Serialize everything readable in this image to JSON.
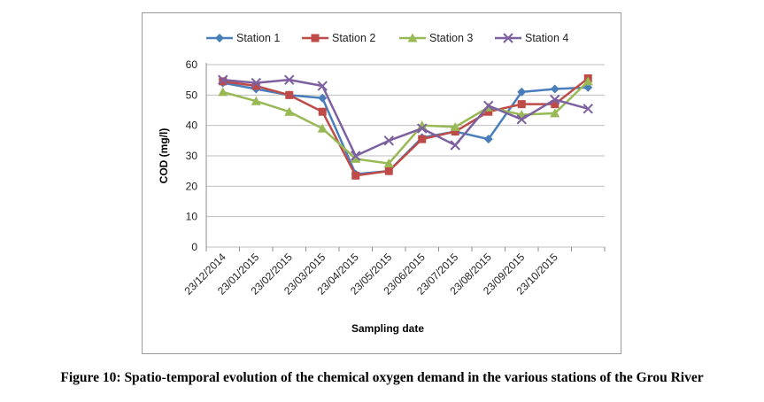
{
  "caption": "Figure 10: Spatio-temporal evolution of the chemical oxygen demand in the various stations of the Grou River",
  "chart_data": {
    "type": "line",
    "xlabel": "Sampling date",
    "ylabel": "COD (mg/l)",
    "ylim": [
      0,
      60
    ],
    "yticks": [
      0,
      10,
      20,
      30,
      40,
      50,
      60
    ],
    "categories": [
      "23/12/2014",
      "23/01/2015",
      "23/02/2015",
      "23/03/2015",
      "23/04/2015",
      "23/05/2015",
      "23/06/2015",
      "23/07/2015",
      "23/08/2015",
      "23/09/2015",
      "23/10/2015",
      ""
    ],
    "grid": "horizontal",
    "legend": "top",
    "series": [
      {
        "name": "Station 1",
        "color": "#4a7ebb",
        "marker": "diamond",
        "values": [
          54,
          52,
          50,
          49,
          24,
          25,
          36,
          38,
          35.5,
          51,
          52,
          52.5
        ]
      },
      {
        "name": "Station 2",
        "color": "#be4b48",
        "marker": "square",
        "values": [
          54.5,
          53,
          50,
          44.5,
          23.5,
          25,
          35.5,
          38,
          44.5,
          47,
          47,
          55.5
        ]
      },
      {
        "name": "Station 3",
        "color": "#98b954",
        "marker": "triangle",
        "values": [
          51,
          48,
          44.5,
          39,
          29,
          27.5,
          40,
          39.5,
          46,
          43.5,
          44,
          54.5
        ]
      },
      {
        "name": "Station 4",
        "color": "#7d60a0",
        "marker": "x",
        "values": [
          55,
          54,
          55,
          53,
          30,
          35,
          39,
          33.5,
          46.5,
          42,
          48.5,
          45.5
        ]
      }
    ]
  }
}
